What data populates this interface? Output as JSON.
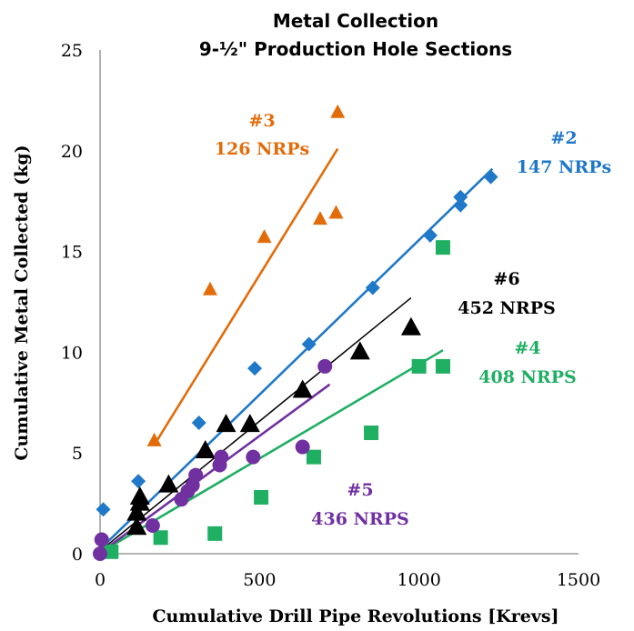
{
  "chart_data": {
    "type": "scatter",
    "title": "Metal Collection",
    "subtitle": "9-½\" Production Hole Sections",
    "xlabel": "Cumulative Drill Pipe Revolutions [Krevs]",
    "ylabel": "Cumulative Metal Collected (kg)",
    "xlim": [
      0,
      1500
    ],
    "ylim": [
      0,
      25
    ],
    "xticks": [
      0,
      500,
      1000,
      1500
    ],
    "yticks": [
      0,
      5,
      10,
      15,
      20,
      25
    ],
    "grid": false,
    "legend": "none",
    "series": [
      {
        "key": "s3",
        "marker": "triangle",
        "color": "#E36C0A",
        "label_line1": "#3",
        "label_line2": "126 NRPs",
        "points": [
          [
            170,
            5.6
          ],
          [
            345,
            13.1
          ],
          [
            515,
            15.7
          ],
          [
            690,
            16.6
          ],
          [
            740,
            16.9
          ],
          [
            745,
            21.9
          ]
        ],
        "trend": [
          [
            170,
            5.4
          ],
          [
            745,
            20.1
          ]
        ]
      },
      {
        "key": "s2",
        "marker": "diamond",
        "color": "#1F78C8",
        "label_line1": "#2",
        "label_line2": "147 NRPs",
        "points": [
          [
            10,
            2.2
          ],
          [
            120,
            3.6
          ],
          [
            310,
            6.5
          ],
          [
            485,
            9.2
          ],
          [
            655,
            10.4
          ],
          [
            855,
            13.2
          ],
          [
            1035,
            15.8
          ],
          [
            1130,
            17.3
          ],
          [
            1130,
            17.7
          ],
          [
            1225,
            18.7
          ]
        ],
        "trend": [
          [
            5,
            0.3
          ],
          [
            1230,
            19.1
          ]
        ]
      },
      {
        "key": "s6",
        "marker": "triangle",
        "color": "#000000",
        "label_line1": "#6",
        "label_line2": "452 NRPS",
        "points": [
          [
            115,
            1.3
          ],
          [
            115,
            2.0
          ],
          [
            125,
            2.5
          ],
          [
            125,
            2.8
          ],
          [
            215,
            3.4
          ],
          [
            330,
            5.1
          ],
          [
            395,
            6.4
          ],
          [
            470,
            6.4
          ],
          [
            635,
            8.1
          ],
          [
            815,
            10.0
          ],
          [
            975,
            11.2
          ]
        ],
        "trend": [
          [
            5,
            0.2
          ],
          [
            975,
            12.7
          ]
        ]
      },
      {
        "key": "s4",
        "marker": "square",
        "color": "#1FAF63",
        "label_line1": "#4",
        "label_line2": "408 NRPS",
        "points": [
          [
            35,
            0.1
          ],
          [
            190,
            0.8
          ],
          [
            360,
            1.0
          ],
          [
            505,
            2.8
          ],
          [
            670,
            4.8
          ],
          [
            850,
            6.0
          ],
          [
            1000,
            9.3
          ],
          [
            1075,
            9.3
          ],
          [
            1075,
            15.2
          ]
        ],
        "trend": [
          [
            5,
            0.1
          ],
          [
            1075,
            10.1
          ]
        ]
      },
      {
        "key": "s5",
        "marker": "circle",
        "color": "#7030A0",
        "label_line1": "#5",
        "label_line2": "436 NRPS",
        "points": [
          [
            0,
            0.0
          ],
          [
            5,
            0.7
          ],
          [
            165,
            1.4
          ],
          [
            255,
            2.7
          ],
          [
            275,
            3.1
          ],
          [
            290,
            3.4
          ],
          [
            300,
            3.9
          ],
          [
            375,
            4.4
          ],
          [
            380,
            4.8
          ],
          [
            480,
            4.8
          ],
          [
            635,
            5.3
          ],
          [
            705,
            9.3
          ]
        ],
        "trend": [
          [
            5,
            0.1
          ],
          [
            720,
            8.4
          ]
        ]
      }
    ]
  }
}
